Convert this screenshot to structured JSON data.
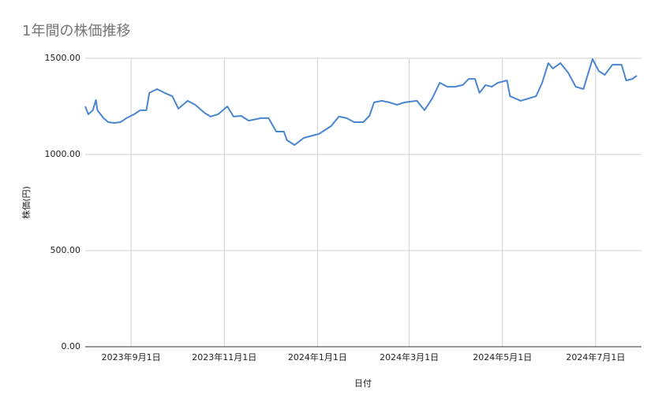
{
  "chart_data": {
    "type": "line",
    "title": "1年間の株価推移",
    "x_label": "日付",
    "y_label": "株価(円)",
    "x": [
      "2023-08-02",
      "2023-08-04",
      "2023-08-07",
      "2023-08-09",
      "2023-08-10",
      "2023-08-14",
      "2023-08-17",
      "2023-08-21",
      "2023-08-25",
      "2023-08-29",
      "2023-09-03",
      "2023-09-07",
      "2023-09-11",
      "2023-09-13",
      "2023-09-18",
      "2023-09-23",
      "2023-09-28",
      "2023-10-02",
      "2023-10-08",
      "2023-10-13",
      "2023-10-19",
      "2023-10-23",
      "2023-10-28",
      "2023-11-03",
      "2023-11-07",
      "2023-11-12",
      "2023-11-17",
      "2023-11-25",
      "2023-11-30",
      "2023-12-05",
      "2023-12-10",
      "2023-12-12",
      "2023-12-17",
      "2023-12-23",
      "2024-01-02",
      "2024-01-10",
      "2024-01-15",
      "2024-01-20",
      "2024-01-25",
      "2024-01-31",
      "2024-02-04",
      "2024-02-07",
      "2024-02-12",
      "2024-02-17",
      "2024-02-22",
      "2024-02-27",
      "2024-03-06",
      "2024-03-11",
      "2024-03-16",
      "2024-03-21",
      "2024-03-26",
      "2024-03-31",
      "2024-04-05",
      "2024-04-09",
      "2024-04-13",
      "2024-04-16",
      "2024-04-20",
      "2024-04-24",
      "2024-04-28",
      "2024-05-04",
      "2024-05-06",
      "2024-05-13",
      "2024-05-18",
      "2024-05-23",
      "2024-05-27",
      "2024-05-31",
      "2024-06-03",
      "2024-06-08",
      "2024-06-13",
      "2024-06-18",
      "2024-06-23",
      "2024-06-25",
      "2024-06-29",
      "2024-07-03",
      "2024-07-07",
      "2024-07-12",
      "2024-07-18",
      "2024-07-21",
      "2024-07-25",
      "2024-07-28"
    ],
    "series": [
      {
        "name": "株価",
        "color": "#4a86d0",
        "values": [
          1250,
          1209,
          1230,
          1283,
          1230,
          1189,
          1168,
          1164,
          1168,
          1189,
          1209,
          1230,
          1230,
          1320,
          1340,
          1320,
          1303,
          1238,
          1279,
          1258,
          1217,
          1197,
          1209,
          1250,
          1197,
          1201,
          1176,
          1189,
          1189,
          1119,
          1119,
          1074,
          1049,
          1086,
          1107,
          1148,
          1197,
          1189,
          1168,
          1168,
          1201,
          1271,
          1279,
          1271,
          1258,
          1271,
          1279,
          1230,
          1291,
          1373,
          1352,
          1352,
          1361,
          1393,
          1393,
          1320,
          1361,
          1352,
          1373,
          1385,
          1303,
          1279,
          1291,
          1303,
          1373,
          1475,
          1447,
          1475,
          1426,
          1352,
          1340,
          1393,
          1496,
          1434,
          1414,
          1467,
          1467,
          1385,
          1393,
          1410
        ]
      }
    ],
    "xlim": [
      "2023-08-02",
      "2024-07-31"
    ],
    "xticks": [
      {
        "value": "2023-09-01",
        "label": "2023年9月1日"
      },
      {
        "value": "2023-11-01",
        "label": "2023年11月1日"
      },
      {
        "value": "2024-01-01",
        "label": "2024年1月1日"
      },
      {
        "value": "2024-03-01",
        "label": "2024年3月1日"
      },
      {
        "value": "2024-05-01",
        "label": "2024年5月1日"
      },
      {
        "value": "2024-07-01",
        "label": "2024年7月1日"
      }
    ],
    "ylim": [
      0,
      1500
    ],
    "yticks": [
      {
        "value": 0,
        "label": "0.00"
      },
      {
        "value": 500,
        "label": "500.00"
      },
      {
        "value": 1000,
        "label": "1000.00"
      },
      {
        "value": 1500,
        "label": "1500.00"
      }
    ],
    "grid": true
  }
}
